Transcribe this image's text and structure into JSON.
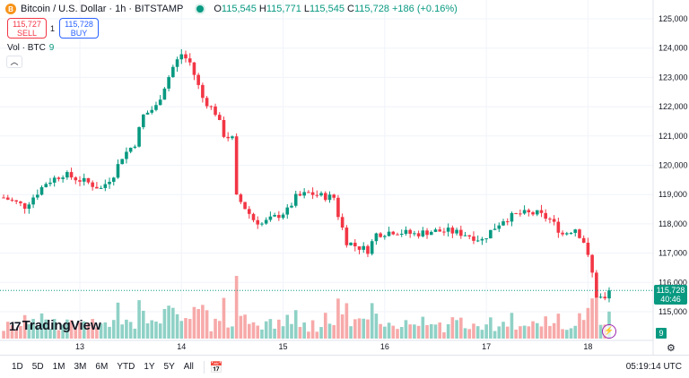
{
  "header": {
    "symbol_icon": "B",
    "title": "Bitcoin / U.S. Dollar · 1h · BITSTAMP",
    "ohlc": [
      {
        "k": "O",
        "v": "115,545"
      },
      {
        "k": "H",
        "v": "115,771"
      },
      {
        "k": "L",
        "v": "115,545"
      },
      {
        "k": "C",
        "v": "115,728"
      }
    ],
    "change": "+186 (+0.16%)"
  },
  "trade": {
    "sell_price": "115,727",
    "sell_label": "SELL",
    "qty": "1",
    "buy_price": "115,728",
    "buy_label": "BUY"
  },
  "volume_legend": {
    "label": "Vol · BTC",
    "value": "9"
  },
  "collapse_icon": "chevron-up-icon",
  "logo": "TradingView",
  "price_axis": {
    "ticks": [
      125000,
      124000,
      123000,
      122000,
      121000,
      120000,
      119000,
      118000,
      117000,
      116000,
      115000
    ],
    "current_price": "115,728",
    "countdown": "40:46",
    "volume_value": "9"
  },
  "time_axis": {
    "ticks": [
      {
        "label": "13",
        "t": 0
      },
      {
        "label": "14",
        "t": 24
      },
      {
        "label": "15",
        "t": 48
      },
      {
        "label": "16",
        "t": 72
      },
      {
        "label": "17",
        "t": 96
      },
      {
        "label": "18",
        "t": 120
      }
    ]
  },
  "colors": {
    "up": "#089981",
    "down": "#f23645",
    "up_vol": "#8fd1c6",
    "down_vol": "#f7a9a9"
  },
  "chart_data": {
    "type": "candlestick",
    "interval": "1h",
    "ylim": [
      114600,
      125200
    ],
    "start_t": -18,
    "end_t": 125,
    "price_path": [
      [
        -18,
        118900
      ],
      [
        -13,
        118600
      ],
      [
        -8,
        119400
      ],
      [
        -4,
        119700
      ],
      [
        2,
        119400
      ],
      [
        5,
        119200
      ],
      [
        8,
        119700
      ],
      [
        10,
        120300
      ],
      [
        13,
        120750
      ],
      [
        15,
        121700
      ],
      [
        18,
        122000
      ],
      [
        20,
        122700
      ],
      [
        22,
        123350
      ],
      [
        24,
        123800
      ],
      [
        26,
        123500
      ],
      [
        29,
        122300
      ],
      [
        32,
        121800
      ],
      [
        34,
        121050
      ],
      [
        36,
        120900
      ],
      [
        37,
        118900
      ],
      [
        38,
        118750
      ],
      [
        41,
        118150
      ],
      [
        43,
        118000
      ],
      [
        45,
        118150
      ],
      [
        47,
        118300
      ],
      [
        49,
        118450
      ],
      [
        51,
        118900
      ],
      [
        54,
        119050
      ],
      [
        57,
        118950
      ],
      [
        60,
        118900
      ],
      [
        61,
        118300
      ],
      [
        63,
        117400
      ],
      [
        65,
        117250
      ],
      [
        68,
        117100
      ],
      [
        70,
        117650
      ],
      [
        74,
        117750
      ],
      [
        79,
        117650
      ],
      [
        83,
        117750
      ],
      [
        87,
        117750
      ],
      [
        91,
        117650
      ],
      [
        95,
        117450
      ],
      [
        97,
        117750
      ],
      [
        100,
        118150
      ],
      [
        104,
        118350
      ],
      [
        108,
        118350
      ],
      [
        111,
        118150
      ],
      [
        114,
        117650
      ],
      [
        117,
        117850
      ],
      [
        119,
        117400
      ],
      [
        121,
        116300
      ],
      [
        122,
        115550
      ],
      [
        124,
        115400
      ],
      [
        125,
        115728
      ]
    ]
  },
  "toolbar": {
    "timeframes": [
      "1D",
      "5D",
      "1M",
      "3M",
      "6M",
      "YTD",
      "1Y",
      "5Y",
      "All"
    ],
    "clock": "05:19:14 UTC"
  }
}
